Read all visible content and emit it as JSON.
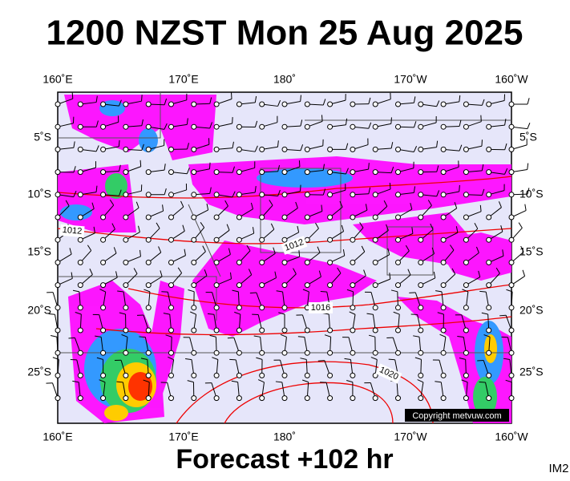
{
  "title": "1200 NZST Mon 25 Aug 2025",
  "top_axis_labels": [
    "160˚E",
    "170˚E",
    "180˚",
    "170˚W",
    "160˚W"
  ],
  "bottom_axis_labels": [
    "160˚E",
    "170˚E",
    "180˚",
    "170˚W",
    "160˚W"
  ],
  "left_axis_labels": [
    "5˚S",
    "10˚S",
    "15˚S",
    "20˚S",
    "25˚S"
  ],
  "right_axis_labels": [
    "5˚S",
    "10˚S",
    "15˚S",
    "20˚S",
    "25˚S"
  ],
  "isobar_labels": [
    "1012",
    "1012",
    "1016",
    "1020"
  ],
  "copyright": "Copyright metvuw.com",
  "footer": "Forecast +102 hr",
  "corner_label": "IM2"
}
